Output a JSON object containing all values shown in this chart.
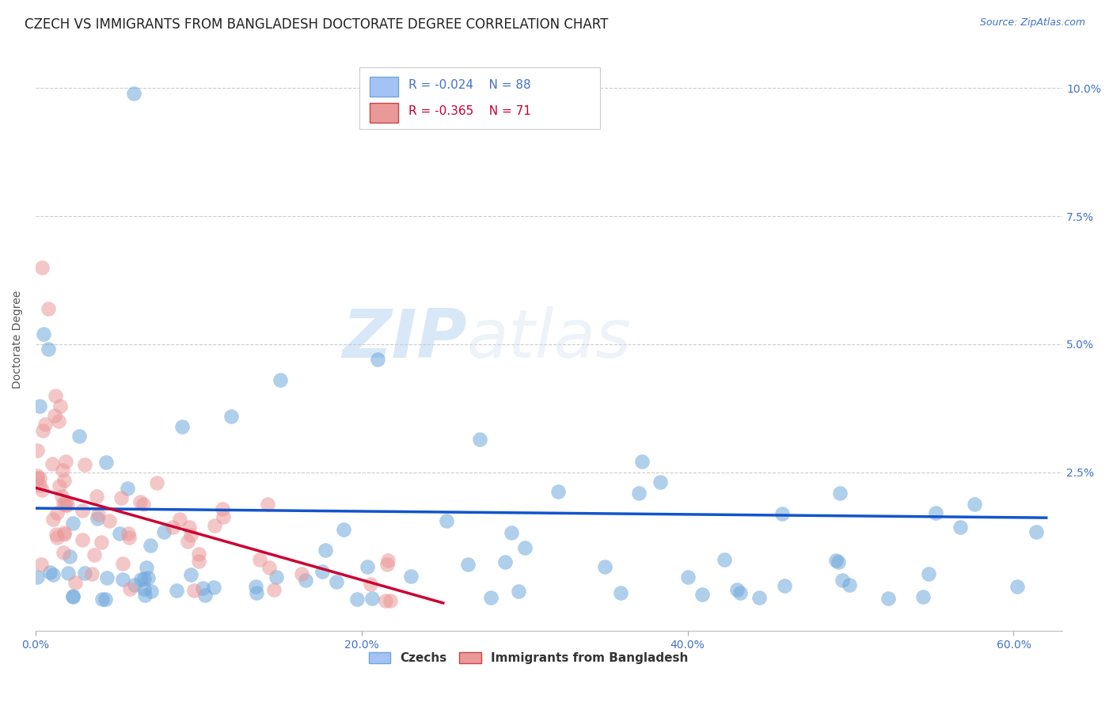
{
  "title": "CZECH VS IMMIGRANTS FROM BANGLADESH DOCTORATE DEGREE CORRELATION CHART",
  "source": "Source: ZipAtlas.com",
  "ylabel": "Doctorate Degree",
  "xlim": [
    0.0,
    0.63
  ],
  "ylim": [
    -0.006,
    0.108
  ],
  "czech_color": "#6fa8dc",
  "bangladesh_color": "#ea9999",
  "czech_line_color": "#1155cc",
  "bangladesh_line_color": "#cc0033",
  "czech_R": -0.024,
  "czech_N": 88,
  "bangladesh_R": -0.365,
  "bangladesh_N": 71,
  "legend_label_czech": "Czechs",
  "legend_label_bangladesh": "Immigrants from Bangladesh",
  "background_color": "#ffffff",
  "watermark_zip": "ZIP",
  "watermark_atlas": "atlas",
  "title_fontsize": 12,
  "source_fontsize": 9,
  "axis_label_fontsize": 10,
  "tick_fontsize": 10,
  "czech_line_slope": -0.003,
  "czech_line_intercept": 0.018,
  "bangladesh_line_slope": -0.09,
  "bangladesh_line_intercept": 0.022,
  "bangladesh_line_xend": 0.25
}
